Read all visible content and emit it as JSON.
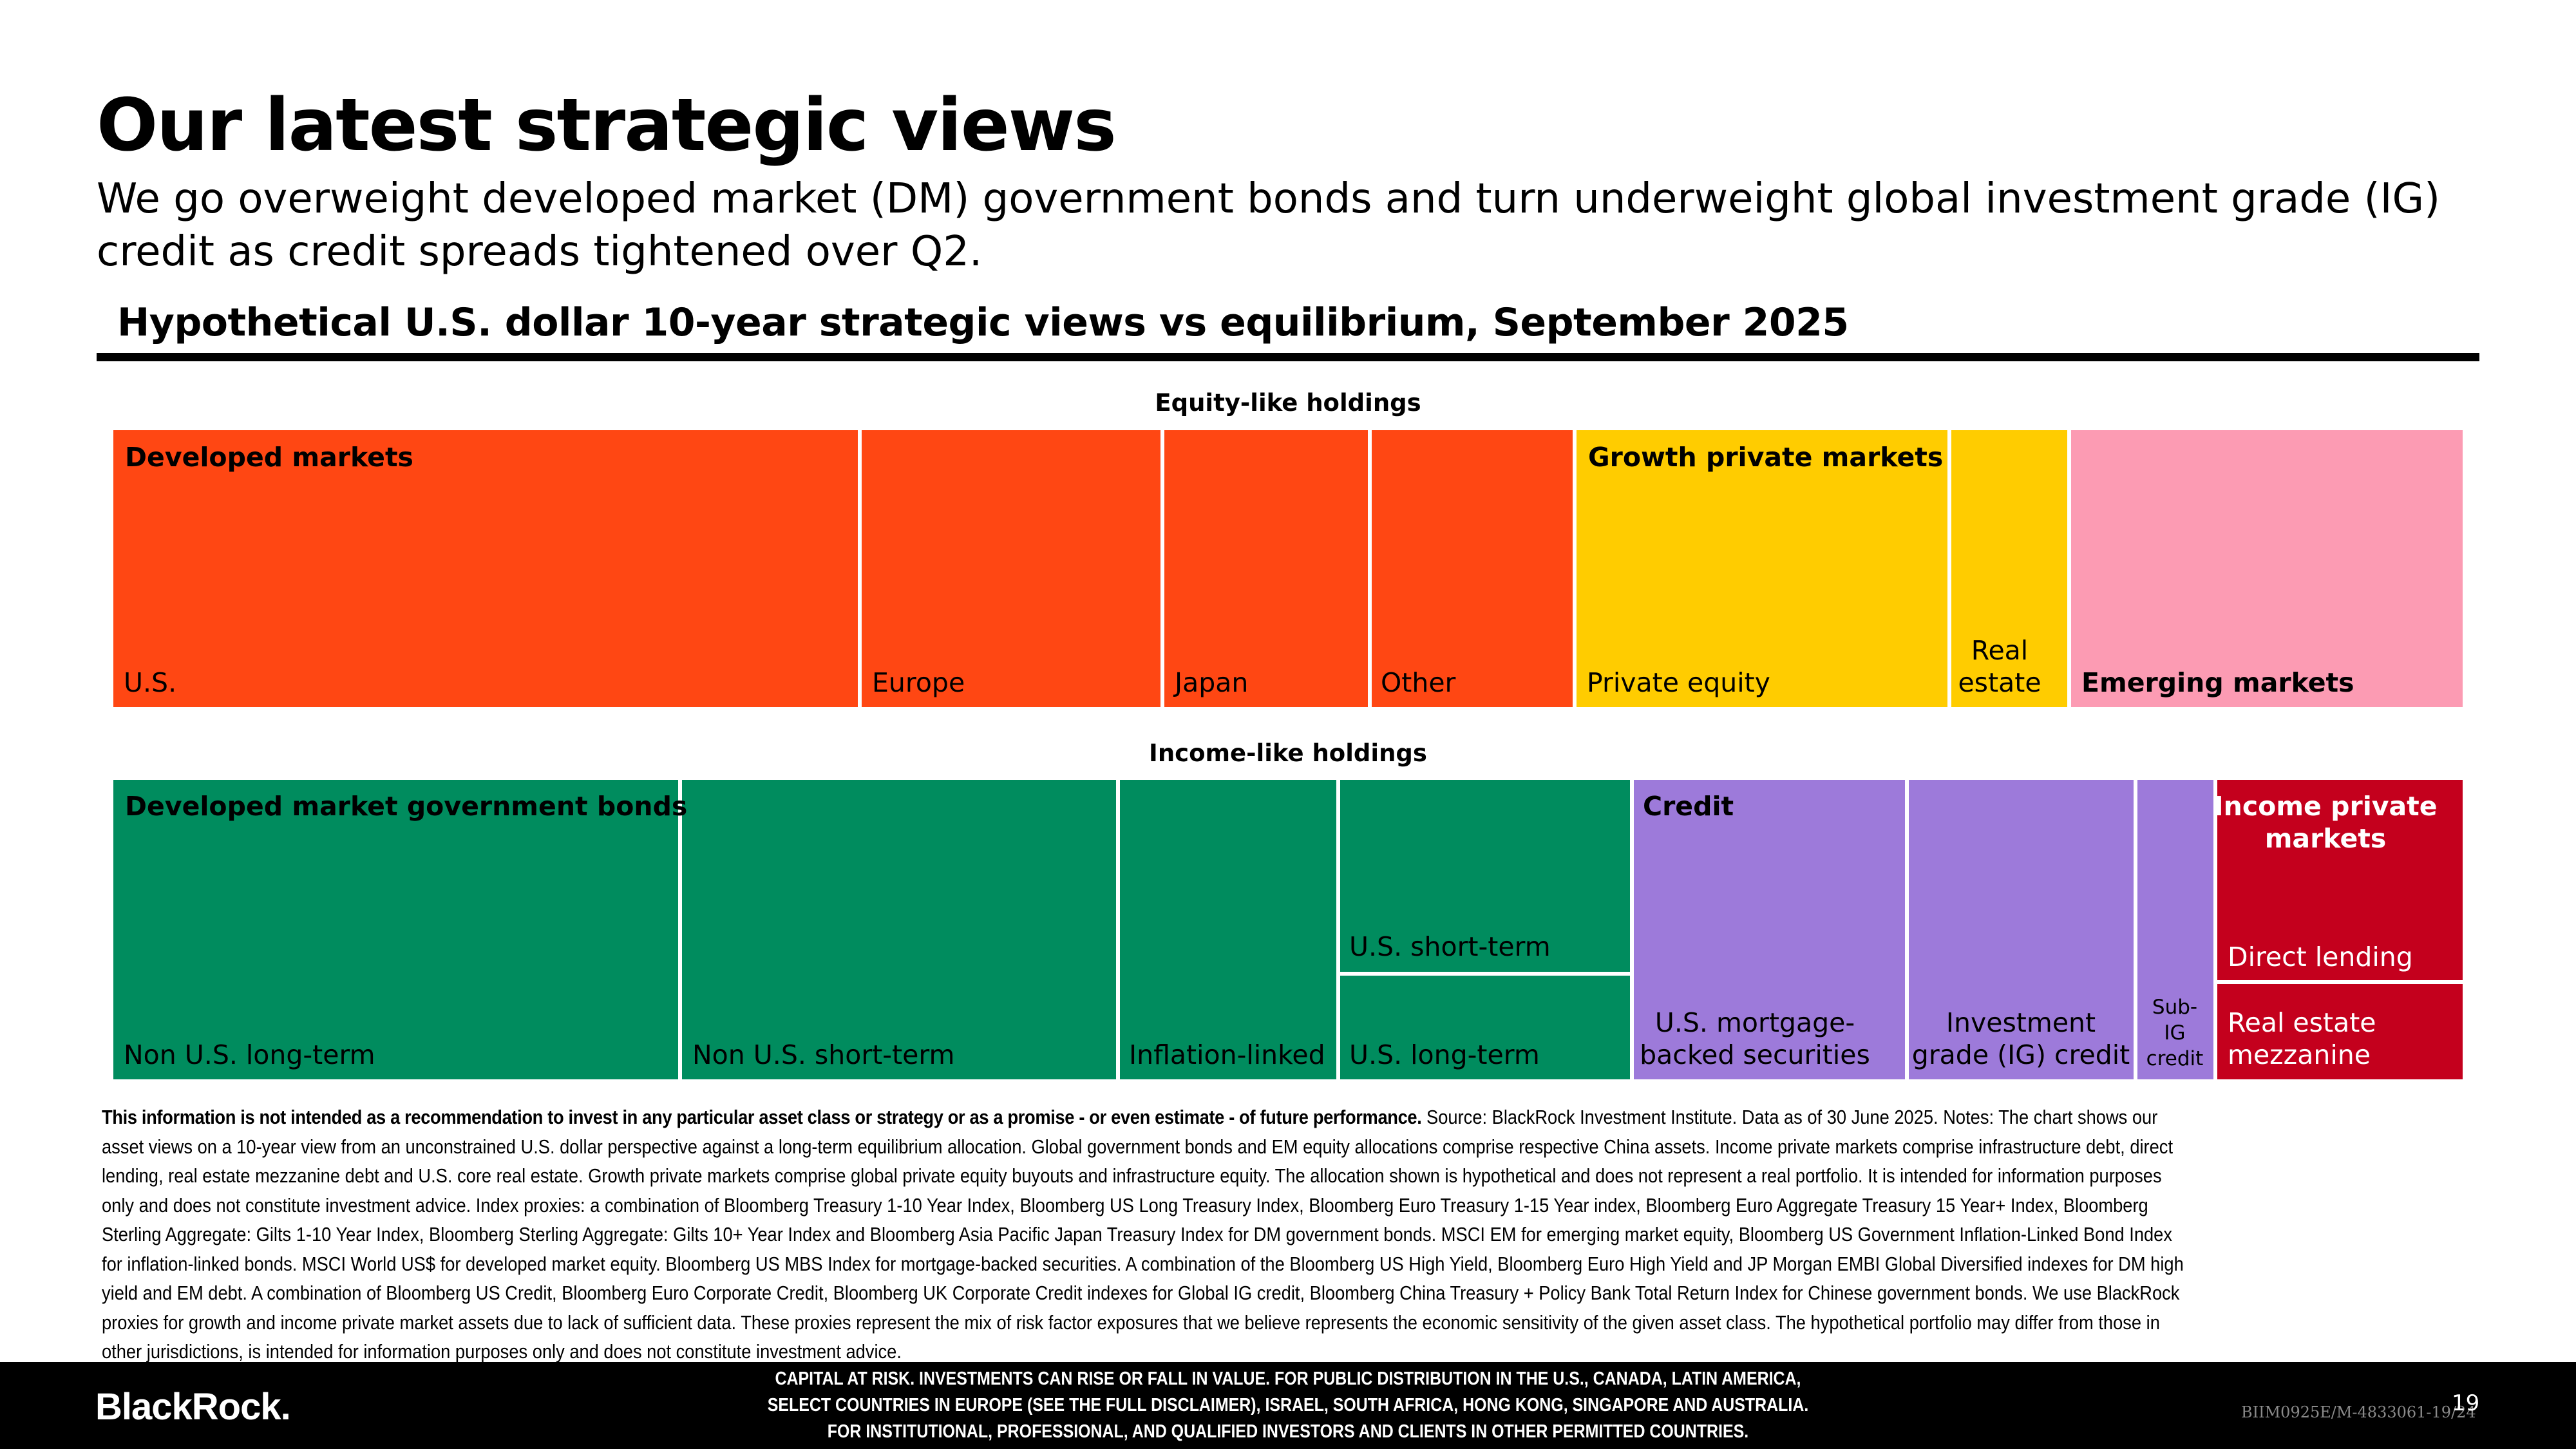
{
  "title": "Our latest strategic views",
  "subtitle": "We go overweight developed market (DM) government bonds and turn underweight global investment grade (IG) credit as credit spreads tightened over Q2.",
  "chart_data": {
    "type": "treemap",
    "title": "Hypothetical U.S. dollar 10-year strategic views vs equilibrium, September 2025",
    "groups": [
      {
        "label": "Equity-like holdings",
        "categories": [
          {
            "name": "Developed markets",
            "color": "#ff4713",
            "segments": [
              "U.S.",
              "Europe",
              "Japan",
              "Other"
            ]
          },
          {
            "name": "Growth private markets",
            "color": "#ffcc00",
            "segments": [
              "Private equity",
              "Real estate"
            ]
          },
          {
            "name": "Emerging markets",
            "color": "#fc9bb3",
            "segments": []
          }
        ]
      },
      {
        "label": "Income-like holdings",
        "categories": [
          {
            "name": "Developed market government bonds",
            "color": "#008c5e",
            "segments": [
              "Non U.S. long-term",
              "Non U.S. short-term",
              "Inflation-linked",
              "U.S. short-term",
              "U.S. long-term"
            ]
          },
          {
            "name": "Credit",
            "color": "#9d7ada",
            "segments": [
              "U.S. mortgage-backed securities",
              "Investment grade (IG) credit",
              "Sub-IG credit"
            ]
          },
          {
            "name": "Income private markets",
            "color": "#c4001d",
            "segments": [
              "Direct lending",
              "Real estate mezzanine"
            ]
          }
        ]
      }
    ]
  },
  "footnote": {
    "bold": "This information is not intended as a recommendation to invest in any particular asset class or strategy or as a promise - or even estimate - of future performance.",
    "text": "Source: BlackRock Investment Institute. Data as of 30 June 2025. Notes: The chart shows our asset views on a 10-year view from an unconstrained U.S. dollar perspective against a long-term equilibrium allocation. Global government bonds and EM equity allocations comprise respective China assets. Income private markets comprise infrastructure debt, direct lending, real estate mezzanine debt and U.S. core real estate. Growth private markets comprise global private equity buyouts and infrastructure equity. The allocation shown is hypothetical and does not represent a real portfolio. It is intended for information purposes only and does not constitute investment advice. Index proxies: a combination of Bloomberg Treasury 1-10 Year Index, Bloomberg US Long Treasury Index, Bloomberg Euro Treasury 1-15 Year index, Bloomberg Euro Aggregate Treasury 15 Year+ Index, Bloomberg Sterling Aggregate: Gilts 1-10 Year Index, Bloomberg Sterling Aggregate: Gilts 10+ Year Index and Bloomberg Asia Pacific Japan Treasury Index for DM government bonds. MSCI EM for emerging market equity, Bloomberg US Government Inflation-Linked Bond Index for inflation-linked bonds. MSCI World US$ for developed market equity. Bloomberg US MBS Index for mortgage-backed securities. A combination of the Bloomberg US High Yield, Bloomberg Euro High Yield and JP Morgan EMBI Global Diversified indexes for DM high yield and EM debt. A combination of Bloomberg US Credit, Bloomberg Euro Corporate Credit, Bloomberg UK Corporate Credit indexes for Global IG credit, Bloomberg China Treasury + Policy Bank Total Return Index for Chinese government bonds. We use BlackRock proxies for growth and income private market assets due to lack of sufficient data. These proxies represent the mix of risk factor exposures that we believe represents the economic sensitivity of the given asset class. The hypothetical portfolio may differ from those in other jurisdictions, is intended for information purposes only and does not constitute investment advice."
  },
  "footer": {
    "logo": "BlackRock.",
    "disclaimer_lines": [
      "CAPITAL AT RISK. INVESTMENTS CAN RISE OR FALL IN VALUE. FOR PUBLIC DISTRIBUTION IN THE U.S., CANADA, LATIN AMERICA,",
      "SELECT COUNTRIES IN EUROPE (SEE THE FULL DISCLAIMER), ISRAEL, SOUTH AFRICA, HONG KONG, SINGAPORE AND AUSTRALIA.",
      "FOR INSTITUTIONAL, PROFESSIONAL, AND QUALIFIED INVESTORS AND CLIENTS IN OTHER PERMITTED COUNTRIES."
    ],
    "code": "BIIM0925E/M-4833061-19/24",
    "page": "19"
  }
}
